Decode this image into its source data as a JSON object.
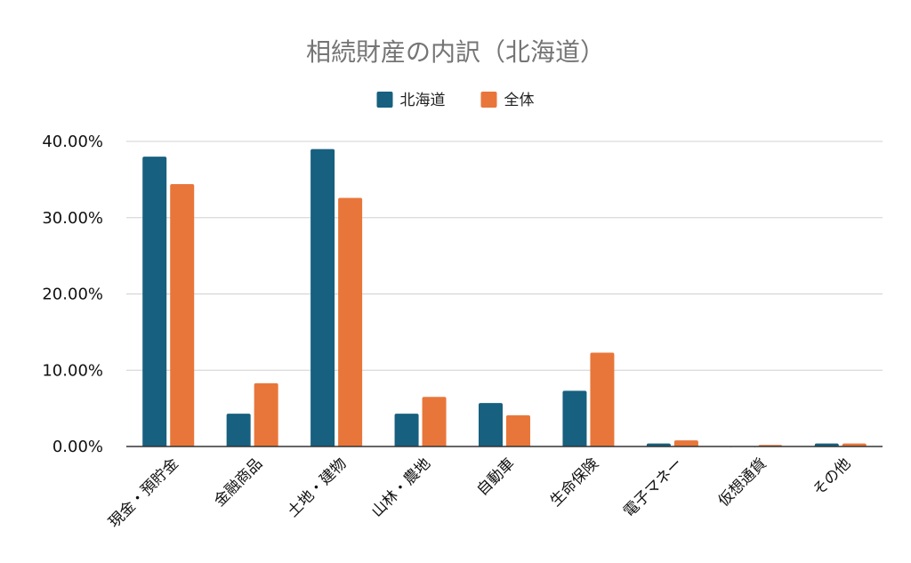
{
  "chart_data": {
    "type": "bar",
    "title": "相続財産の内訳（北海道）",
    "categories": [
      "現金・預貯金",
      "金融商品",
      "土地・建物",
      "山林・農地",
      "自動車",
      "生命保険",
      "電子マネー",
      "仮想通貨",
      "その他"
    ],
    "series": [
      {
        "name": "北海道",
        "color": "#17607f",
        "values": [
          38.0,
          4.3,
          39.0,
          4.3,
          5.7,
          7.3,
          0.4,
          0.0,
          0.4
        ]
      },
      {
        "name": "全体",
        "color": "#e8763a",
        "values": [
          34.4,
          8.3,
          32.6,
          6.5,
          4.1,
          12.3,
          0.8,
          0.2,
          0.4
        ]
      }
    ],
    "yticks": [
      "0.00%",
      "10.00%",
      "20.00%",
      "30.00%",
      "40.00%"
    ],
    "ylim": [
      0,
      40
    ],
    "grid": true,
    "legend_position": "top-center"
  }
}
